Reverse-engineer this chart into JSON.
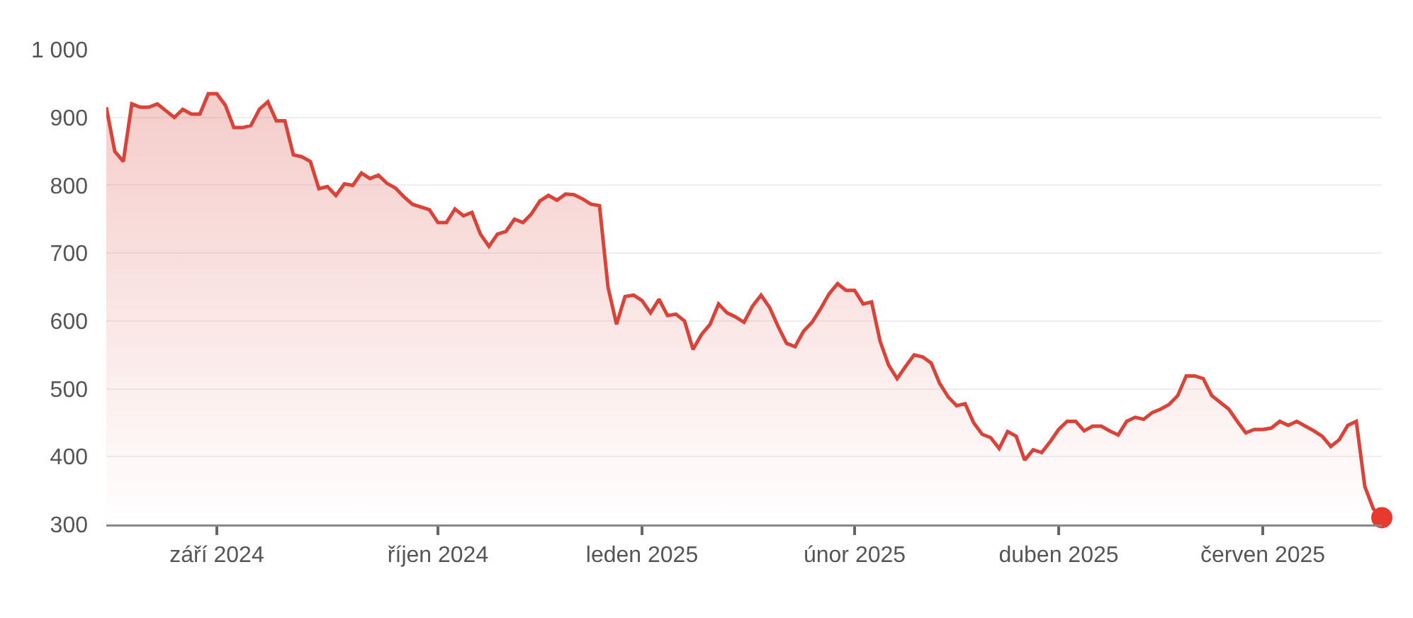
{
  "chart_data": {
    "type": "area",
    "categories": [
      null,
      null,
      null,
      null,
      null,
      null,
      null,
      null,
      null,
      null,
      null,
      null,
      null,
      "září 2024",
      null,
      null,
      null,
      null,
      null,
      null,
      null,
      null,
      null,
      null,
      null,
      null,
      null,
      null,
      null,
      null,
      null,
      null,
      null,
      null,
      null,
      null,
      null,
      null,
      null,
      "říjen 2024",
      null,
      null,
      null,
      null,
      null,
      null,
      null,
      null,
      null,
      null,
      null,
      null,
      null,
      null,
      null,
      null,
      null,
      null,
      null,
      null,
      null,
      null,
      null,
      "leden 2025",
      null,
      null,
      null,
      null,
      null,
      null,
      null,
      null,
      null,
      null,
      null,
      null,
      null,
      null,
      null,
      null,
      null,
      null,
      null,
      null,
      null,
      null,
      null,
      null,
      "únor 2025",
      null,
      null,
      null,
      null,
      null,
      null,
      null,
      null,
      null,
      null,
      null,
      null,
      null,
      null,
      null,
      null,
      null,
      null,
      null,
      null,
      null,
      null,
      null,
      "duben 2025",
      null,
      null,
      null,
      null,
      null,
      null,
      null,
      null,
      null,
      null,
      null,
      null,
      null,
      null,
      null,
      null,
      null,
      null,
      null,
      null,
      null,
      null,
      null,
      "červen 2025",
      null,
      null,
      null,
      null,
      null,
      null,
      null,
      null,
      null,
      null,
      null,
      null,
      null,
      null
    ],
    "series": [
      {
        "color": "#d9443a",
        "values": [
          915,
          850,
          835,
          920,
          915,
          915,
          920,
          910,
          900,
          912,
          905,
          905,
          935,
          935,
          918,
          885,
          885,
          888,
          912,
          923,
          895,
          895,
          845,
          842,
          835,
          795,
          798,
          785,
          802,
          800,
          818,
          810,
          815,
          803,
          796,
          783,
          772,
          768,
          764,
          745,
          745,
          765,
          755,
          760,
          728,
          710,
          728,
          732,
          750,
          745,
          758,
          777,
          785,
          778,
          787,
          786,
          780,
          772,
          770,
          650,
          595,
          636,
          638,
          630,
          612,
          632,
          608,
          610,
          600,
          558,
          580,
          595,
          625,
          612,
          606,
          598,
          622,
          638,
          620,
          592,
          567,
          562,
          585,
          598,
          618,
          640,
          655,
          645,
          645,
          625,
          628,
          570,
          535,
          515,
          533,
          550,
          547,
          538,
          508,
          488,
          475,
          478,
          450,
          433,
          428,
          412,
          437,
          430,
          395,
          410,
          406,
          422,
          440,
          452,
          452,
          438,
          445,
          445,
          438,
          432,
          452,
          458,
          455,
          465,
          470,
          477,
          490,
          519,
          519,
          515,
          490,
          480,
          470,
          452,
          435,
          440,
          440,
          442,
          452,
          446,
          452,
          445,
          438,
          430,
          415,
          425,
          446,
          452,
          356,
          323,
          310
        ]
      },
      {
        "type": "scatter",
        "color": "#e8392f",
        "marker": "circle",
        "values": [
          null,
          null,
          null,
          null,
          null,
          null,
          null,
          null,
          null,
          null,
          null,
          null,
          null,
          null,
          null,
          null,
          null,
          null,
          null,
          null,
          null,
          null,
          null,
          null,
          null,
          null,
          null,
          null,
          null,
          null,
          null,
          null,
          null,
          null,
          null,
          null,
          null,
          null,
          null,
          null,
          null,
          null,
          null,
          null,
          null,
          null,
          null,
          null,
          null,
          null,
          null,
          null,
          null,
          null,
          null,
          null,
          null,
          null,
          null,
          null,
          null,
          null,
          null,
          null,
          null,
          null,
          null,
          null,
          null,
          null,
          null,
          null,
          null,
          null,
          null,
          null,
          null,
          null,
          null,
          null,
          null,
          null,
          null,
          null,
          null,
          null,
          null,
          null,
          null,
          null,
          null,
          null,
          null,
          null,
          null,
          null,
          null,
          null,
          null,
          null,
          null,
          null,
          null,
          null,
          null,
          null,
          null,
          null,
          null,
          null,
          null,
          null,
          null,
          null,
          null,
          null,
          null,
          null,
          null,
          null,
          null,
          null,
          null,
          null,
          null,
          null,
          null,
          null,
          null,
          null,
          null,
          null,
          null,
          null,
          null,
          null,
          null,
          null,
          null,
          null,
          null,
          null,
          null,
          null,
          null,
          null,
          null,
          null,
          null,
          null,
          310
        ]
      }
    ],
    "ylim": [
      300,
      1000
    ],
    "yticks": [
      300,
      400,
      500,
      600,
      700,
      800,
      900,
      {
        "value": 1000,
        "label": "1 000"
      }
    ],
    "grid": "y"
  }
}
